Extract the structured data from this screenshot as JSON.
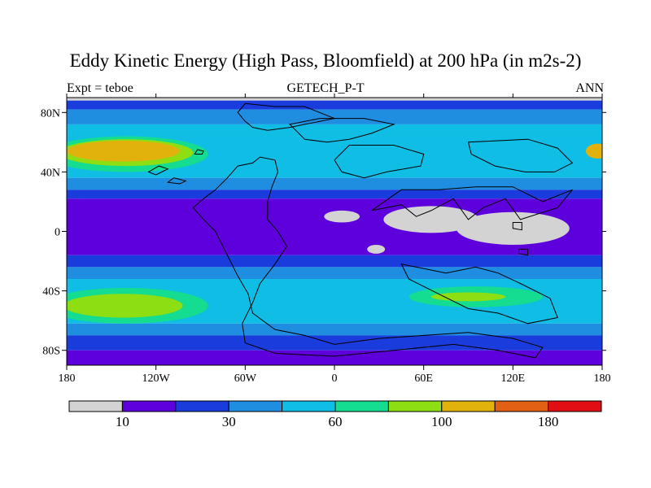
{
  "title": "Eddy Kinetic Energy (High Pass, Bloomfield) at 200 hPa (in m2s-2)",
  "subtitle_left": "Expt = teboe",
  "subtitle_center": "GETECH_P-T",
  "subtitle_right": "ANN",
  "chart_data": {
    "type": "heatmap",
    "title": "Eddy Kinetic Energy (High Pass, Bloomfield) at 200 hPa (in m2s-2)",
    "projection": "cylindrical equidistant",
    "x_range": [
      -180,
      180
    ],
    "y_range": [
      -90,
      90
    ],
    "x_ticks": [
      {
        "value": -180,
        "label": "180"
      },
      {
        "value": -120,
        "label": "120W"
      },
      {
        "value": -60,
        "label": "60W"
      },
      {
        "value": 0,
        "label": "0"
      },
      {
        "value": 60,
        "label": "60E"
      },
      {
        "value": 120,
        "label": "120E"
      },
      {
        "value": 180,
        "label": "180"
      }
    ],
    "y_ticks": [
      {
        "value": 80,
        "label": "80N"
      },
      {
        "value": 40,
        "label": "40N"
      },
      {
        "value": 0,
        "label": "0"
      },
      {
        "value": -40,
        "label": "40S"
      },
      {
        "value": -80,
        "label": "80S"
      }
    ],
    "colorbar": {
      "colors": [
        "#d3d3d3",
        "#5e00dc",
        "#1a3cdd",
        "#1f8de0",
        "#10bde4",
        "#14dc90",
        "#8ede14",
        "#e2b20c",
        "#e26014",
        "#e10f14"
      ],
      "labels": [
        {
          "index": 1,
          "text": "10"
        },
        {
          "index": 3,
          "text": "30"
        },
        {
          "index": 5,
          "text": "60"
        },
        {
          "index": 7,
          "text": "100"
        },
        {
          "index": 9,
          "text": "180"
        }
      ]
    },
    "zonal_bands": [
      {
        "lat_top": 90,
        "lat_bottom": 88,
        "level": 0
      },
      {
        "lat_top": 88,
        "lat_bottom": 82,
        "level": 2
      },
      {
        "lat_top": 82,
        "lat_bottom": 72,
        "level": 3
      },
      {
        "lat_top": 72,
        "lat_bottom": 64,
        "level": 4
      },
      {
        "lat_top": 64,
        "lat_bottom": 36,
        "level": 4
      },
      {
        "lat_top": 36,
        "lat_bottom": 28,
        "level": 3
      },
      {
        "lat_top": 28,
        "lat_bottom": 22,
        "level": 2
      },
      {
        "lat_top": 22,
        "lat_bottom": -16,
        "level": 1
      },
      {
        "lat_top": -16,
        "lat_bottom": -24,
        "level": 2
      },
      {
        "lat_top": -24,
        "lat_bottom": -32,
        "level": 3
      },
      {
        "lat_top": -32,
        "lat_bottom": -62,
        "level": 4
      },
      {
        "lat_top": -62,
        "lat_bottom": -70,
        "level": 3
      },
      {
        "lat_top": -70,
        "lat_bottom": -80,
        "level": 2
      },
      {
        "lat_top": -80,
        "lat_bottom": -90,
        "level": 1
      }
    ],
    "features": [
      {
        "name": "north-pacific-jet",
        "level": 5,
        "lon": -140,
        "lat": 52,
        "rlon": 55,
        "rlat": 12
      },
      {
        "name": "north-pacific-jet-core-lime",
        "level": 6,
        "lon": -140,
        "lat": 53,
        "rlon": 45,
        "rlat": 9
      },
      {
        "name": "north-pacific-jet-core",
        "level": 7,
        "lon": -142,
        "lat": 54,
        "rlon": 38,
        "rlat": 7
      },
      {
        "name": "north-atlantic-jet-core",
        "level": 7,
        "lon": 177,
        "lat": 54,
        "rlon": 8,
        "rlat": 5
      },
      {
        "name": "south-pacific-jet",
        "level": 5,
        "lon": -140,
        "lat": -50,
        "rlon": 55,
        "rlat": 12
      },
      {
        "name": "south-pacific-jet-core",
        "level": 6,
        "lon": -142,
        "lat": -50,
        "rlon": 40,
        "rlat": 8
      },
      {
        "name": "south-indian-jet",
        "level": 5,
        "lon": 95,
        "lat": -44,
        "rlon": 45,
        "rlat": 7
      },
      {
        "name": "south-indian-jet-core",
        "level": 6,
        "lon": 90,
        "lat": -44,
        "rlon": 25,
        "rlat": 3
      },
      {
        "name": "tropics-low-africa",
        "level": 0,
        "lon": 65,
        "lat": 8,
        "rlon": 32,
        "rlat": 9
      },
      {
        "name": "tropics-low-asia",
        "level": 0,
        "lon": 120,
        "lat": 2,
        "rlon": 38,
        "rlat": 11
      },
      {
        "name": "tropics-low-atlantic",
        "level": 0,
        "lon": 5,
        "lat": 10,
        "rlon": 12,
        "rlat": 4
      },
      {
        "name": "tropics-low-indian",
        "level": 0,
        "lon": 28,
        "lat": -12,
        "rlon": 6,
        "rlat": 3
      }
    ],
    "coastlines": [
      [
        [
          -60,
          86
        ],
        [
          -40,
          84
        ],
        [
          -20,
          84
        ],
        [
          -10,
          80
        ],
        [
          0,
          76
        ],
        [
          -20,
          72
        ],
        [
          -30,
          70
        ],
        [
          -45,
          68
        ],
        [
          -55,
          70
        ],
        [
          -60,
          74
        ],
        [
          -65,
          80
        ],
        [
          -60,
          86
        ]
      ],
      [
        [
          -50,
          50
        ],
        [
          -55,
          46
        ],
        [
          -65,
          44
        ],
        [
          -72,
          36
        ],
        [
          -80,
          28
        ],
        [
          -88,
          22
        ],
        [
          -95,
          16
        ],
        [
          -88,
          8
        ],
        [
          -80,
          0
        ],
        [
          -75,
          -10
        ],
        [
          -70,
          -20
        ],
        [
          -65,
          -30
        ],
        [
          -58,
          -42
        ],
        [
          -55,
          -55
        ],
        [
          -40,
          -66
        ],
        [
          -20,
          -70
        ],
        [
          0,
          -76
        ],
        [
          30,
          -72
        ],
        [
          60,
          -70
        ],
        [
          90,
          -68
        ],
        [
          120,
          -72
        ],
        [
          140,
          -78
        ],
        [
          135,
          -85
        ],
        [
          110,
          -80
        ],
        [
          80,
          -76
        ],
        [
          40,
          -80
        ],
        [
          0,
          -84
        ],
        [
          -40,
          -82
        ],
        [
          -60,
          -75
        ],
        [
          -62,
          -62
        ],
        [
          -55,
          -48
        ],
        [
          -50,
          -35
        ],
        [
          -40,
          -22
        ],
        [
          -32,
          -10
        ],
        [
          -38,
          0
        ],
        [
          -45,
          8
        ],
        [
          -45,
          20
        ],
        [
          -42,
          30
        ],
        [
          -38,
          40
        ],
        [
          -40,
          48
        ],
        [
          -50,
          50
        ]
      ],
      [
        [
          -30,
          72
        ],
        [
          -10,
          76
        ],
        [
          20,
          76
        ],
        [
          40,
          72
        ],
        [
          25,
          66
        ],
        [
          10,
          62
        ],
        [
          -5,
          60
        ],
        [
          -20,
          62
        ],
        [
          -30,
          72
        ]
      ],
      [
        [
          10,
          58
        ],
        [
          40,
          58
        ],
        [
          60,
          52
        ],
        [
          58,
          44
        ],
        [
          35,
          40
        ],
        [
          20,
          36
        ],
        [
          5,
          40
        ],
        [
          0,
          48
        ],
        [
          10,
          58
        ]
      ],
      [
        [
          25,
          14
        ],
        [
          45,
          18
        ],
        [
          55,
          10
        ],
        [
          65,
          14
        ],
        [
          80,
          22
        ],
        [
          90,
          8
        ],
        [
          100,
          16
        ],
        [
          115,
          22
        ],
        [
          125,
          8
        ],
        [
          150,
          16
        ],
        [
          160,
          28
        ],
        [
          140,
          20
        ],
        [
          120,
          30
        ],
        [
          95,
          30
        ],
        [
          70,
          28
        ],
        [
          45,
          28
        ],
        [
          25,
          14
        ]
      ],
      [
        [
          90,
          60
        ],
        [
          130,
          62
        ],
        [
          150,
          56
        ],
        [
          160,
          46
        ],
        [
          148,
          40
        ],
        [
          128,
          40
        ],
        [
          108,
          44
        ],
        [
          92,
          52
        ],
        [
          90,
          60
        ]
      ],
      [
        [
          45,
          -22
        ],
        [
          75,
          -28
        ],
        [
          95,
          -24
        ],
        [
          110,
          -28
        ],
        [
          125,
          -35
        ],
        [
          145,
          -45
        ],
        [
          150,
          -58
        ],
        [
          130,
          -62
        ],
        [
          110,
          -55
        ],
        [
          90,
          -52
        ],
        [
          70,
          -42
        ],
        [
          50,
          -32
        ],
        [
          45,
          -22
        ]
      ],
      [
        [
          -112,
          42
        ],
        [
          -118,
          44
        ],
        [
          -125,
          40
        ],
        [
          -120,
          38
        ],
        [
          -112,
          42
        ]
      ],
      [
        [
          -100,
          34
        ],
        [
          -108,
          36
        ],
        [
          -112,
          33
        ],
        [
          -104,
          32
        ],
        [
          -100,
          34
        ]
      ],
      [
        [
          -88,
          54
        ],
        [
          -92,
          55
        ],
        [
          -94,
          52
        ],
        [
          -89,
          52
        ],
        [
          -88,
          54
        ]
      ],
      [
        [
          124,
          -12
        ],
        [
          130,
          -12
        ],
        [
          130,
          -16
        ],
        [
          124,
          -15
        ],
        [
          124,
          -12
        ]
      ],
      [
        [
          120,
          6
        ],
        [
          126,
          6
        ],
        [
          126,
          1
        ],
        [
          120,
          2
        ],
        [
          120,
          6
        ]
      ]
    ]
  }
}
